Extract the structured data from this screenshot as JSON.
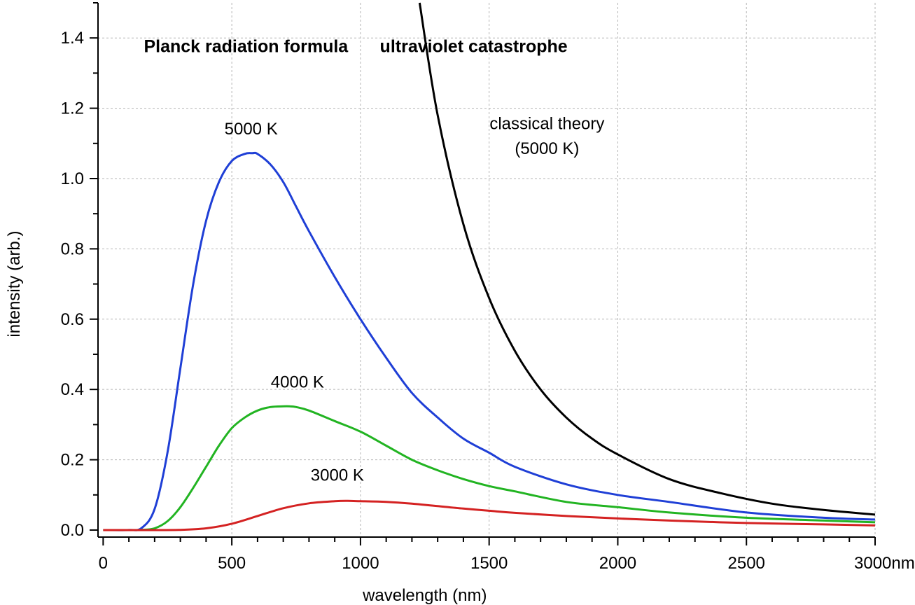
{
  "chart_data": {
    "type": "line",
    "xlabel": "wavelength (nm)",
    "ylabel": "intensity (arb.)",
    "xlim": [
      -20,
      3000
    ],
    "ylim": [
      -0.02,
      1.5
    ],
    "x_ticks": [
      0,
      500,
      1000,
      1500,
      2000,
      2500,
      3000
    ],
    "x_tick_labels": [
      "0",
      "500",
      "1000",
      "1500",
      "2000",
      "2500",
      "3000nm"
    ],
    "y_ticks": [
      0.0,
      0.2,
      0.4,
      0.6,
      0.8,
      1.0,
      1.2,
      1.4
    ],
    "y_tick_labels": [
      "0.0",
      "0.2",
      "0.4",
      "0.6",
      "0.8",
      "1.0",
      "1.2",
      "1.4"
    ],
    "grid": true,
    "series": [
      {
        "key": "planck5000",
        "color": "#1f3fd6",
        "x": [
          0,
          100,
          150,
          200,
          250,
          300,
          350,
          400,
          450,
          500,
          550,
          580,
          600,
          650,
          700,
          750,
          800,
          900,
          1000,
          1100,
          1200,
          1300,
          1400,
          1500,
          1600,
          1800,
          2000,
          2200,
          2500,
          2800,
          3000
        ],
        "y": [
          0,
          0.0002,
          0.006,
          0.06,
          0.22,
          0.46,
          0.7,
          0.88,
          0.99,
          1.05,
          1.07,
          1.072,
          1.07,
          1.04,
          0.99,
          0.92,
          0.85,
          0.72,
          0.6,
          0.49,
          0.39,
          0.32,
          0.26,
          0.22,
          0.18,
          0.13,
          0.1,
          0.08,
          0.05,
          0.035,
          0.03
        ]
      },
      {
        "key": "planck4000",
        "color": "#22b422",
        "x": [
          0,
          100,
          150,
          200,
          250,
          300,
          350,
          400,
          450,
          500,
          550,
          600,
          650,
          700,
          725,
          750,
          800,
          900,
          1000,
          1100,
          1200,
          1300,
          1400,
          1500,
          1600,
          1800,
          2000,
          2200,
          2500,
          2800,
          3000
        ],
        "y": [
          0,
          0,
          0.0005,
          0.005,
          0.025,
          0.065,
          0.12,
          0.18,
          0.24,
          0.29,
          0.32,
          0.34,
          0.35,
          0.352,
          0.352,
          0.35,
          0.34,
          0.31,
          0.28,
          0.24,
          0.2,
          0.17,
          0.145,
          0.125,
          0.11,
          0.08,
          0.065,
          0.05,
          0.035,
          0.027,
          0.022
        ]
      },
      {
        "key": "planck3000",
        "color": "#d42222",
        "x": [
          0,
          200,
          300,
          400,
          500,
          600,
          700,
          800,
          900,
          950,
          1000,
          1100,
          1200,
          1300,
          1400,
          1500,
          1600,
          1800,
          2000,
          2200,
          2500,
          2800,
          3000
        ],
        "y": [
          0,
          0,
          0.0005,
          0.005,
          0.018,
          0.04,
          0.062,
          0.076,
          0.082,
          0.083,
          0.082,
          0.08,
          0.075,
          0.068,
          0.061,
          0.055,
          0.049,
          0.04,
          0.033,
          0.027,
          0.02,
          0.016,
          0.013
        ]
      },
      {
        "key": "classical",
        "color": "#000000",
        "x": [
          1230,
          1300,
          1400,
          1500,
          1600,
          1700,
          1800,
          1900,
          2000,
          2200,
          2400,
          2600,
          2800,
          3000
        ],
        "y": [
          1.5,
          1.18,
          0.87,
          0.66,
          0.51,
          0.4,
          0.32,
          0.26,
          0.215,
          0.145,
          0.105,
          0.075,
          0.057,
          0.044
        ]
      }
    ],
    "annotations": [
      {
        "key": "title_left",
        "text": "Planck radiation formula",
        "x": 555,
        "y": 1.36,
        "bold": true
      },
      {
        "key": "title_right",
        "text": "ultraviolet catastrophe",
        "x": 1440,
        "y": 1.36,
        "bold": true
      },
      {
        "key": "label5000",
        "text": "5000 K",
        "x": 575,
        "y": 1.125,
        "bold": false
      },
      {
        "key": "label4000",
        "text": "4000 K",
        "x": 755,
        "y": 0.405,
        "bold": false
      },
      {
        "key": "label3000",
        "text": "3000 K",
        "x": 910,
        "y": 0.14,
        "bold": false
      },
      {
        "key": "classical1",
        "text": "classical theory",
        "x": 1725,
        "y": 1.14,
        "bold": false
      },
      {
        "key": "classical2",
        "text": "(5000 K)",
        "x": 1725,
        "y": 1.07,
        "bold": false
      }
    ]
  }
}
